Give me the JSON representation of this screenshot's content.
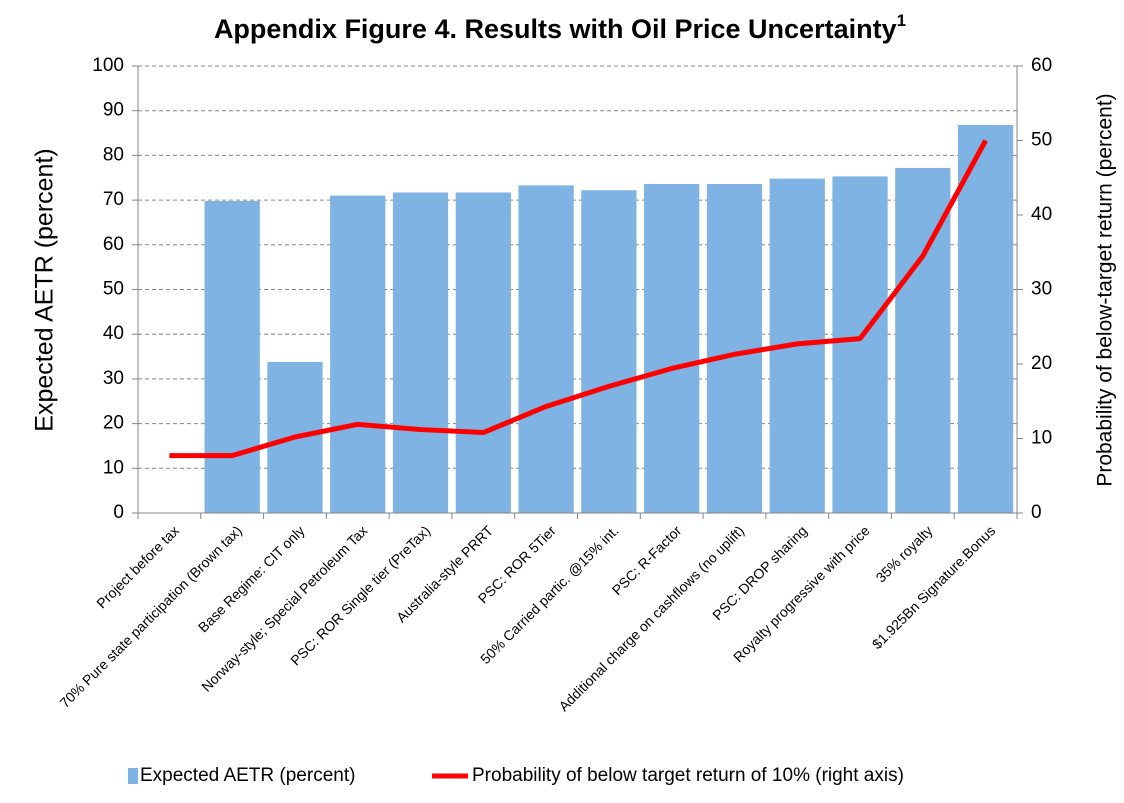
{
  "chart_data": {
    "type": "bar_line",
    "title": "Appendix Figure 4. Results with Oil Price Uncertainty",
    "title_superscript": "1",
    "y_label": "Expected AETR (percent)",
    "y2_label": "Probability of below-target  return  (percent)",
    "categories": [
      "Project before tax",
      "70% Pure state participation (Brown tax)",
      "Base Regime: CIT only",
      "Norway-style; Special Petroleum Tax",
      "PSC: ROR Single tier  (PreTax)",
      "Australia-style PRRT",
      "PSC: ROR 5Tier",
      "50% Carried partic. @15% int.",
      "PSC: R-Factor",
      "Additional charge on cashflows (no uplift)",
      "PSC: DROP sharing",
      "Royalty progressive with price",
      "35% royalty",
      "$1.925Bn Signature.Bonus"
    ],
    "series": [
      {
        "name": "Expected AETR (percent)",
        "color": "#7eb3e3",
        "kind": "bar",
        "axis": "y",
        "values": [
          0,
          69.8,
          33.8,
          71,
          71.7,
          71.7,
          73.3,
          72.2,
          73.6,
          73.6,
          74.8,
          75.3,
          77.2,
          86.8
        ]
      },
      {
        "name": "Probability of below target return of 10% (right axis)",
        "color": "#ff0000",
        "kind": "line",
        "axis": "y2",
        "values": [
          7.7,
          7.7,
          10.2,
          11.9,
          11.2,
          10.8,
          14.3,
          17.0,
          19.4,
          21.3,
          22.7,
          23.4,
          34.5,
          50.0
        ]
      }
    ],
    "ylim": [
      0,
      100
    ],
    "yticks": [
      0,
      10,
      20,
      30,
      40,
      50,
      60,
      70,
      80,
      90,
      100
    ],
    "y2lim": [
      0,
      60
    ],
    "y2ticks": [
      0,
      10,
      20,
      30,
      40,
      50,
      60
    ],
    "grid": true
  }
}
